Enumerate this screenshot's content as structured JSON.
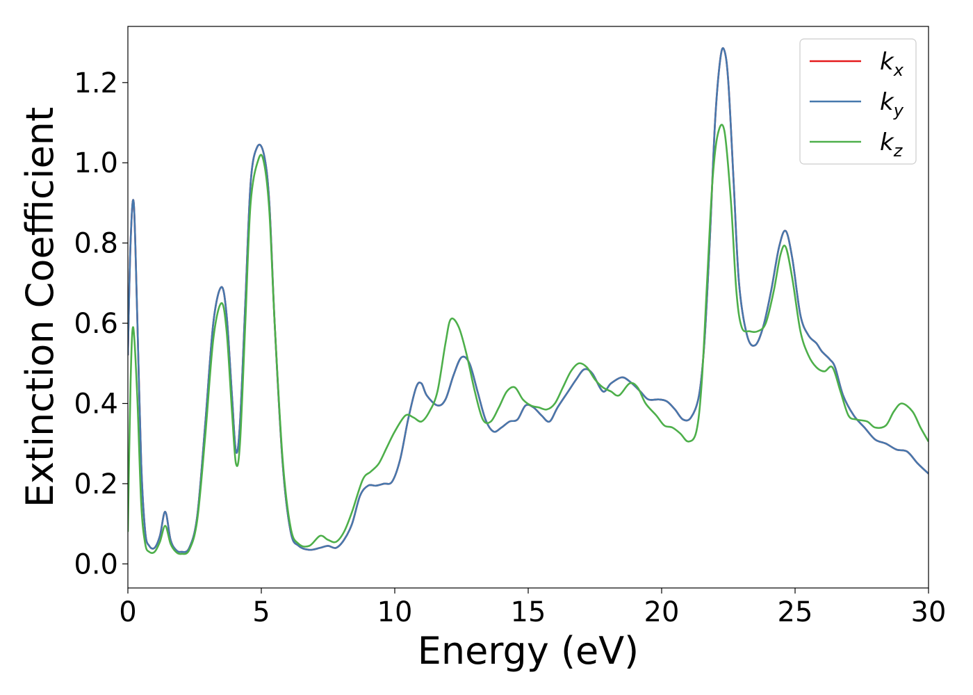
{
  "chart_data": {
    "type": "line",
    "title": "",
    "xlabel": "Energy (eV)",
    "ylabel": "Extinction Coefficient",
    "xlim": [
      0,
      30
    ],
    "ylim": [
      -0.06,
      1.34
    ],
    "xticks": [
      0,
      5,
      10,
      15,
      20,
      25,
      30
    ],
    "yticks": [
      0.0,
      0.2,
      0.4,
      0.6,
      0.8,
      1.0,
      1.2
    ],
    "xtick_labels": [
      "0",
      "5",
      "10",
      "15",
      "20",
      "25",
      "30"
    ],
    "ytick_labels": [
      "0.0",
      "0.2",
      "0.4",
      "0.6",
      "0.8",
      "1.0",
      "1.2"
    ],
    "grid": false,
    "legend_position": "top-right",
    "series": [
      {
        "name": "k_x",
        "label_base": "k",
        "label_sub": "x",
        "color": "#e41a1c",
        "x": [
          0.0,
          0.1,
          0.22,
          0.35,
          0.5,
          0.65,
          0.8,
          1.0,
          1.2,
          1.4,
          1.6,
          1.8,
          2.0,
          2.3,
          2.6,
          2.9,
          3.2,
          3.5,
          3.7,
          3.9,
          4.05,
          4.2,
          4.4,
          4.6,
          4.85,
          5.1,
          5.3,
          5.5,
          5.8,
          6.1,
          6.4,
          6.8,
          7.2,
          7.5,
          7.8,
          8.1,
          8.4,
          8.7,
          9.0,
          9.3,
          9.6,
          9.9,
          10.2,
          10.5,
          10.8,
          11.0,
          11.2,
          11.6,
          11.9,
          12.2,
          12.5,
          12.8,
          13.1,
          13.4,
          13.7,
          14.0,
          14.3,
          14.6,
          14.9,
          15.2,
          15.5,
          15.8,
          16.1,
          16.5,
          16.8,
          17.1,
          17.4,
          17.8,
          18.1,
          18.5,
          18.8,
          19.2,
          19.5,
          19.9,
          20.2,
          20.5,
          20.8,
          21.1,
          21.4,
          21.6,
          21.8,
          22.0,
          22.2,
          22.35,
          22.5,
          22.7,
          22.9,
          23.2,
          23.5,
          23.8,
          24.1,
          24.4,
          24.65,
          24.9,
          25.2,
          25.5,
          25.8,
          26.0,
          26.3,
          26.5,
          26.8,
          27.2,
          27.6,
          28.0,
          28.4,
          28.8,
          29.2,
          29.6,
          30.0
        ],
        "y": [
          0.52,
          0.8,
          0.9,
          0.62,
          0.25,
          0.08,
          0.045,
          0.04,
          0.07,
          0.13,
          0.06,
          0.035,
          0.03,
          0.04,
          0.12,
          0.35,
          0.6,
          0.69,
          0.62,
          0.42,
          0.28,
          0.35,
          0.65,
          0.95,
          1.04,
          1.02,
          0.9,
          0.6,
          0.25,
          0.08,
          0.045,
          0.035,
          0.04,
          0.045,
          0.04,
          0.06,
          0.1,
          0.17,
          0.195,
          0.195,
          0.2,
          0.205,
          0.26,
          0.36,
          0.44,
          0.45,
          0.42,
          0.395,
          0.41,
          0.47,
          0.515,
          0.5,
          0.43,
          0.36,
          0.33,
          0.34,
          0.355,
          0.36,
          0.395,
          0.39,
          0.37,
          0.355,
          0.39,
          0.43,
          0.46,
          0.485,
          0.475,
          0.43,
          0.45,
          0.465,
          0.455,
          0.43,
          0.41,
          0.41,
          0.405,
          0.385,
          0.36,
          0.365,
          0.42,
          0.55,
          0.8,
          1.1,
          1.26,
          1.28,
          1.2,
          0.95,
          0.7,
          0.57,
          0.545,
          0.59,
          0.68,
          0.79,
          0.83,
          0.76,
          0.62,
          0.57,
          0.55,
          0.53,
          0.51,
          0.49,
          0.42,
          0.37,
          0.34,
          0.31,
          0.3,
          0.285,
          0.28,
          0.25,
          0.225
        ]
      },
      {
        "name": "k_y",
        "label_base": "k",
        "label_sub": "y",
        "color": "#4678ad",
        "x": [
          0.0,
          0.1,
          0.22,
          0.35,
          0.5,
          0.65,
          0.8,
          1.0,
          1.2,
          1.4,
          1.6,
          1.8,
          2.0,
          2.3,
          2.6,
          2.9,
          3.2,
          3.5,
          3.7,
          3.9,
          4.05,
          4.2,
          4.4,
          4.6,
          4.85,
          5.1,
          5.3,
          5.5,
          5.8,
          6.1,
          6.4,
          6.8,
          7.2,
          7.5,
          7.8,
          8.1,
          8.4,
          8.7,
          9.0,
          9.3,
          9.6,
          9.9,
          10.2,
          10.5,
          10.8,
          11.0,
          11.2,
          11.6,
          11.9,
          12.2,
          12.5,
          12.8,
          13.1,
          13.4,
          13.7,
          14.0,
          14.3,
          14.6,
          14.9,
          15.2,
          15.5,
          15.8,
          16.1,
          16.5,
          16.8,
          17.1,
          17.4,
          17.8,
          18.1,
          18.5,
          18.8,
          19.2,
          19.5,
          19.9,
          20.2,
          20.5,
          20.8,
          21.1,
          21.4,
          21.6,
          21.8,
          22.0,
          22.2,
          22.35,
          22.5,
          22.7,
          22.9,
          23.2,
          23.5,
          23.8,
          24.1,
          24.4,
          24.65,
          24.9,
          25.2,
          25.5,
          25.8,
          26.0,
          26.3,
          26.5,
          26.8,
          27.2,
          27.6,
          28.0,
          28.4,
          28.8,
          29.2,
          29.6,
          30.0
        ],
        "y": [
          0.52,
          0.8,
          0.9,
          0.62,
          0.25,
          0.08,
          0.045,
          0.04,
          0.07,
          0.13,
          0.06,
          0.035,
          0.03,
          0.04,
          0.12,
          0.35,
          0.6,
          0.69,
          0.62,
          0.42,
          0.28,
          0.35,
          0.65,
          0.95,
          1.04,
          1.02,
          0.9,
          0.6,
          0.25,
          0.08,
          0.045,
          0.035,
          0.04,
          0.045,
          0.04,
          0.06,
          0.1,
          0.17,
          0.195,
          0.195,
          0.2,
          0.205,
          0.26,
          0.36,
          0.44,
          0.45,
          0.42,
          0.395,
          0.41,
          0.47,
          0.515,
          0.5,
          0.43,
          0.36,
          0.33,
          0.34,
          0.355,
          0.36,
          0.395,
          0.39,
          0.37,
          0.355,
          0.39,
          0.43,
          0.46,
          0.485,
          0.475,
          0.43,
          0.45,
          0.465,
          0.455,
          0.43,
          0.41,
          0.41,
          0.405,
          0.385,
          0.36,
          0.365,
          0.42,
          0.55,
          0.8,
          1.1,
          1.26,
          1.28,
          1.2,
          0.95,
          0.7,
          0.57,
          0.545,
          0.59,
          0.68,
          0.79,
          0.83,
          0.76,
          0.62,
          0.57,
          0.55,
          0.53,
          0.51,
          0.49,
          0.42,
          0.37,
          0.34,
          0.31,
          0.3,
          0.285,
          0.28,
          0.25,
          0.225
        ]
      },
      {
        "name": "k_z",
        "label_base": "k",
        "label_sub": "z",
        "color": "#4daf4a",
        "x": [
          0.0,
          0.1,
          0.2,
          0.35,
          0.5,
          0.65,
          0.8,
          1.0,
          1.2,
          1.4,
          1.6,
          1.8,
          2.0,
          2.3,
          2.6,
          2.9,
          3.2,
          3.5,
          3.7,
          3.9,
          4.05,
          4.2,
          4.4,
          4.6,
          4.9,
          5.1,
          5.3,
          5.5,
          5.8,
          6.1,
          6.4,
          6.8,
          7.2,
          7.5,
          7.8,
          8.1,
          8.4,
          8.8,
          9.1,
          9.4,
          9.7,
          10.0,
          10.4,
          10.7,
          11.0,
          11.3,
          11.6,
          11.9,
          12.1,
          12.4,
          12.7,
          13.0,
          13.3,
          13.6,
          13.9,
          14.2,
          14.5,
          14.8,
          15.1,
          15.4,
          15.7,
          16.0,
          16.3,
          16.6,
          16.9,
          17.2,
          17.5,
          17.8,
          18.1,
          18.4,
          18.8,
          19.1,
          19.4,
          19.8,
          20.1,
          20.4,
          20.7,
          21.0,
          21.3,
          21.5,
          21.7,
          21.9,
          22.1,
          22.35,
          22.6,
          22.8,
          23.0,
          23.3,
          23.6,
          23.9,
          24.2,
          24.45,
          24.65,
          24.9,
          25.2,
          25.5,
          25.8,
          26.1,
          26.4,
          26.7,
          27.0,
          27.3,
          27.7,
          28.0,
          28.4,
          28.7,
          29.0,
          29.4,
          29.7,
          30.0
        ],
        "y": [
          0.08,
          0.45,
          0.59,
          0.42,
          0.15,
          0.05,
          0.03,
          0.03,
          0.055,
          0.095,
          0.05,
          0.03,
          0.025,
          0.035,
          0.11,
          0.32,
          0.56,
          0.65,
          0.58,
          0.38,
          0.25,
          0.3,
          0.6,
          0.9,
          1.01,
          1.0,
          0.88,
          0.6,
          0.26,
          0.09,
          0.05,
          0.045,
          0.07,
          0.06,
          0.055,
          0.08,
          0.13,
          0.21,
          0.23,
          0.25,
          0.29,
          0.33,
          0.37,
          0.365,
          0.355,
          0.38,
          0.43,
          0.55,
          0.61,
          0.59,
          0.52,
          0.43,
          0.36,
          0.355,
          0.39,
          0.43,
          0.44,
          0.41,
          0.395,
          0.39,
          0.385,
          0.4,
          0.44,
          0.48,
          0.5,
          0.49,
          0.46,
          0.44,
          0.43,
          0.42,
          0.45,
          0.44,
          0.4,
          0.37,
          0.345,
          0.34,
          0.325,
          0.305,
          0.33,
          0.45,
          0.7,
          0.95,
          1.07,
          1.08,
          0.9,
          0.68,
          0.59,
          0.58,
          0.58,
          0.6,
          0.68,
          0.77,
          0.79,
          0.71,
          0.58,
          0.52,
          0.49,
          0.48,
          0.49,
          0.43,
          0.37,
          0.36,
          0.355,
          0.34,
          0.345,
          0.38,
          0.4,
          0.38,
          0.34,
          0.305
        ]
      }
    ]
  }
}
